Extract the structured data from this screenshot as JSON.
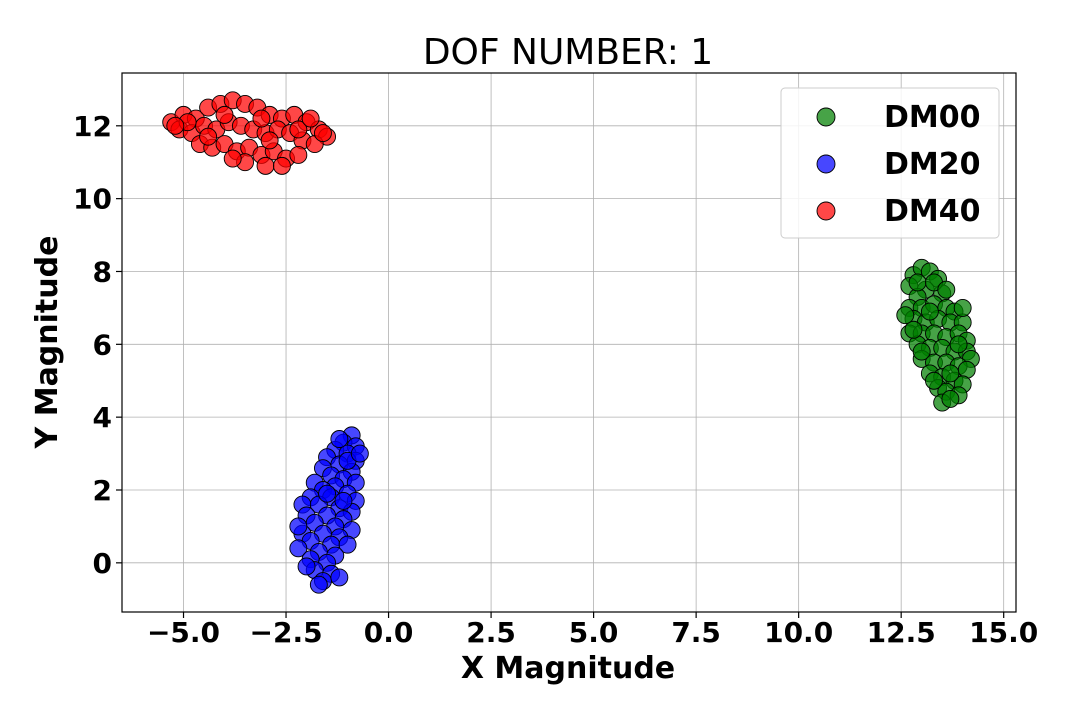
{
  "chart_data": {
    "type": "scatter",
    "title": "DOF NUMBER: 1",
    "xlabel": "X Magnitude",
    "ylabel": "Y Magnitude",
    "xlim": [
      -6.5,
      15.3
    ],
    "ylim": [
      -1.35,
      13.45
    ],
    "x_ticks": [
      -5.0,
      -2.5,
      0.0,
      2.5,
      5.0,
      7.5,
      10.0,
      12.5,
      15.0
    ],
    "x_tick_labels": [
      "−5.0",
      "−2.5",
      "0.0",
      "2.5",
      "5.0",
      "7.5",
      "10.0",
      "12.5",
      "15.0"
    ],
    "y_ticks": [
      0,
      2,
      4,
      6,
      8,
      10,
      12
    ],
    "y_tick_labels": [
      "0",
      "2",
      "4",
      "6",
      "8",
      "10",
      "12"
    ],
    "grid": true,
    "legend_position": "top-right",
    "series": [
      {
        "name": "DM00",
        "color": "#008000",
        "points": [
          [
            12.8,
            7.9
          ],
          [
            13.0,
            8.1
          ],
          [
            13.2,
            8.0
          ],
          [
            13.4,
            7.8
          ],
          [
            12.7,
            7.6
          ],
          [
            13.1,
            7.5
          ],
          [
            13.5,
            7.4
          ],
          [
            12.9,
            7.3
          ],
          [
            12.7,
            7.0
          ],
          [
            13.0,
            7.0
          ],
          [
            13.3,
            7.1
          ],
          [
            13.6,
            7.0
          ],
          [
            13.8,
            6.9
          ],
          [
            12.8,
            6.7
          ],
          [
            13.1,
            6.6
          ],
          [
            13.4,
            6.7
          ],
          [
            13.7,
            6.6
          ],
          [
            14.0,
            6.6
          ],
          [
            12.7,
            6.3
          ],
          [
            13.0,
            6.3
          ],
          [
            13.3,
            6.3
          ],
          [
            13.6,
            6.2
          ],
          [
            13.9,
            6.3
          ],
          [
            14.1,
            6.1
          ],
          [
            12.9,
            6.0
          ],
          [
            13.2,
            5.9
          ],
          [
            13.5,
            5.9
          ],
          [
            13.8,
            5.8
          ],
          [
            14.1,
            5.8
          ],
          [
            14.2,
            5.6
          ],
          [
            13.0,
            5.6
          ],
          [
            13.3,
            5.5
          ],
          [
            13.6,
            5.5
          ],
          [
            13.9,
            5.4
          ],
          [
            14.1,
            5.3
          ],
          [
            13.2,
            5.2
          ],
          [
            13.5,
            5.1
          ],
          [
            13.8,
            5.0
          ],
          [
            14.0,
            4.9
          ],
          [
            13.4,
            4.8
          ],
          [
            13.6,
            4.7
          ],
          [
            13.9,
            4.6
          ],
          [
            13.5,
            4.4
          ],
          [
            13.7,
            4.5
          ],
          [
            12.9,
            7.7
          ],
          [
            13.3,
            7.7
          ],
          [
            13.6,
            7.5
          ],
          [
            12.8,
            6.4
          ],
          [
            14.0,
            7.0
          ],
          [
            13.2,
            6.9
          ],
          [
            12.6,
            6.8
          ],
          [
            13.9,
            6.0
          ],
          [
            13.0,
            5.8
          ],
          [
            13.7,
            5.2
          ],
          [
            13.3,
            5.0
          ]
        ]
      },
      {
        "name": "DM20",
        "color": "#0000ff",
        "points": [
          [
            -0.9,
            3.5
          ],
          [
            -1.1,
            3.3
          ],
          [
            -0.8,
            3.2
          ],
          [
            -1.3,
            3.1
          ],
          [
            -1.0,
            3.0
          ],
          [
            -1.5,
            2.9
          ],
          [
            -0.8,
            2.8
          ],
          [
            -1.2,
            2.7
          ],
          [
            -1.6,
            2.6
          ],
          [
            -0.9,
            2.5
          ],
          [
            -1.4,
            2.4
          ],
          [
            -1.1,
            2.3
          ],
          [
            -1.8,
            2.2
          ],
          [
            -0.8,
            2.2
          ],
          [
            -1.3,
            2.1
          ],
          [
            -1.6,
            2.0
          ],
          [
            -1.0,
            1.9
          ],
          [
            -1.9,
            1.8
          ],
          [
            -1.4,
            1.8
          ],
          [
            -0.8,
            1.7
          ],
          [
            -2.1,
            1.6
          ],
          [
            -1.7,
            1.6
          ],
          [
            -1.2,
            1.5
          ],
          [
            -0.9,
            1.4
          ],
          [
            -2.0,
            1.3
          ],
          [
            -1.5,
            1.3
          ],
          [
            -1.1,
            1.2
          ],
          [
            -1.8,
            1.1
          ],
          [
            -1.3,
            1.0
          ],
          [
            -0.9,
            0.9
          ],
          [
            -2.1,
            0.8
          ],
          [
            -1.6,
            0.8
          ],
          [
            -1.2,
            0.7
          ],
          [
            -1.9,
            0.6
          ],
          [
            -1.4,
            0.5
          ],
          [
            -1.0,
            0.5
          ],
          [
            -2.2,
            0.4
          ],
          [
            -1.7,
            0.3
          ],
          [
            -1.3,
            0.2
          ],
          [
            -1.9,
            0.1
          ],
          [
            -1.5,
            0.0
          ],
          [
            -1.8,
            -0.2
          ],
          [
            -1.4,
            -0.3
          ],
          [
            -1.6,
            -0.5
          ],
          [
            -1.7,
            -0.6
          ],
          [
            -1.2,
            -0.4
          ],
          [
            -2.0,
            -0.1
          ],
          [
            -1.0,
            2.8
          ],
          [
            -1.2,
            3.4
          ],
          [
            -0.7,
            3.0
          ],
          [
            -1.5,
            1.9
          ],
          [
            -2.2,
            1.0
          ],
          [
            -1.1,
            1.7
          ]
        ]
      },
      {
        "name": "DM40",
        "color": "#ff0000",
        "points": [
          [
            -5.3,
            12.1
          ],
          [
            -5.0,
            12.3
          ],
          [
            -4.7,
            12.2
          ],
          [
            -4.4,
            12.5
          ],
          [
            -4.1,
            12.6
          ],
          [
            -3.8,
            12.7
          ],
          [
            -3.5,
            12.6
          ],
          [
            -3.2,
            12.5
          ],
          [
            -2.9,
            12.3
          ],
          [
            -2.6,
            12.2
          ],
          [
            -2.3,
            12.3
          ],
          [
            -2.0,
            12.1
          ],
          [
            -1.7,
            11.9
          ],
          [
            -1.5,
            11.7
          ],
          [
            -5.1,
            11.9
          ],
          [
            -4.8,
            11.8
          ],
          [
            -4.5,
            12.0
          ],
          [
            -4.2,
            11.9
          ],
          [
            -3.9,
            12.1
          ],
          [
            -3.6,
            12.0
          ],
          [
            -3.3,
            11.9
          ],
          [
            -3.0,
            11.8
          ],
          [
            -2.7,
            11.9
          ],
          [
            -2.4,
            11.8
          ],
          [
            -2.1,
            11.6
          ],
          [
            -1.8,
            11.5
          ],
          [
            -4.6,
            11.5
          ],
          [
            -4.3,
            11.4
          ],
          [
            -4.0,
            11.5
          ],
          [
            -3.7,
            11.3
          ],
          [
            -3.4,
            11.4
          ],
          [
            -3.1,
            11.2
          ],
          [
            -2.8,
            11.3
          ],
          [
            -2.5,
            11.1
          ],
          [
            -2.2,
            11.2
          ],
          [
            -3.5,
            11.0
          ],
          [
            -3.0,
            10.9
          ],
          [
            -2.6,
            10.9
          ],
          [
            -4.9,
            12.1
          ],
          [
            -4.0,
            12.3
          ],
          [
            -3.1,
            12.2
          ],
          [
            -2.2,
            11.9
          ],
          [
            -1.9,
            12.2
          ],
          [
            -5.2,
            12.0
          ],
          [
            -3.8,
            11.1
          ],
          [
            -4.4,
            11.7
          ],
          [
            -2.9,
            11.6
          ],
          [
            -1.6,
            11.8
          ]
        ]
      }
    ]
  }
}
